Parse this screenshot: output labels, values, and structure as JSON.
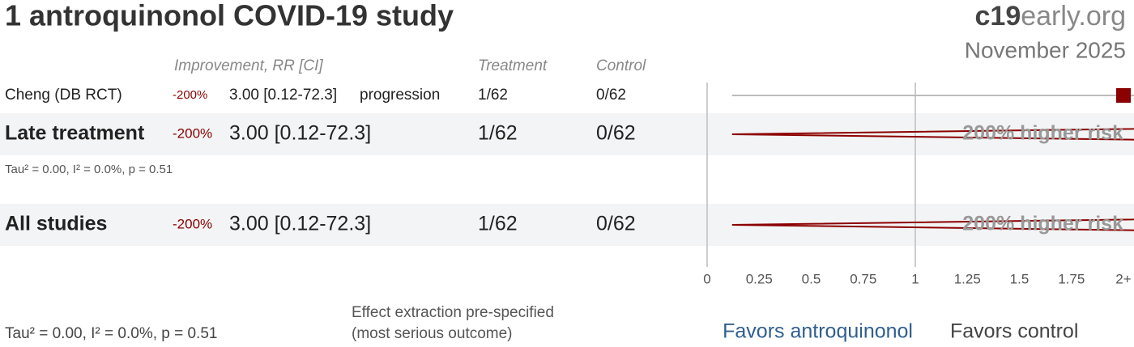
{
  "header": {
    "title": "1 antroquinonol COVID-19 study",
    "brand_bold": "c19",
    "brand_rest": "early.org",
    "date": "November 2025"
  },
  "columns": {
    "effect": "Improvement, RR [CI]",
    "treatment": "Treatment",
    "control": "Control"
  },
  "chart_data": {
    "type": "forest",
    "rows": [
      {
        "label": "Cheng (DB RCT)",
        "improvement": "-200%",
        "rr": 3.0,
        "ci": [
          0.12,
          72.3
        ],
        "rr_label": "3.00 [0.12-72.3]",
        "outcome": "progression",
        "treatment": "1/62",
        "control": "0/62",
        "kind": "study"
      },
      {
        "label": "Late treatment",
        "improvement": "-200%",
        "rr": 3.0,
        "ci": [
          0.12,
          72.3
        ],
        "rr_label": "3.00 [0.12-72.3]",
        "treatment": "1/62",
        "control": "0/62",
        "kind": "summary",
        "risk_label": "200% higher risk",
        "heterogeneity": "Tau² = 0.00, I² = 0.0%, p = 0.51"
      },
      {
        "label": "All studies",
        "improvement": "-200%",
        "rr": 3.0,
        "ci": [
          0.12,
          72.3
        ],
        "rr_label": "3.00 [0.12-72.3]",
        "treatment": "1/62",
        "control": "0/62",
        "kind": "summary",
        "risk_label": "200% higher risk"
      }
    ],
    "xlim": [
      0,
      2
    ],
    "xticks": [
      0,
      0.25,
      0.5,
      0.75,
      1,
      1.25,
      1.5,
      1.75,
      {
        "value": 2,
        "label": "2+"
      }
    ],
    "null_line": 1,
    "favors": [
      "Favors antroquinonol",
      "Favors control"
    ],
    "color": "#8b0000"
  },
  "footer": {
    "heterogeneity": "Tau² = 0.00, I² = 0.0%, p = 0.51",
    "note_1": "Effect extraction pre-specified",
    "note_2": "(most serious outcome)"
  }
}
